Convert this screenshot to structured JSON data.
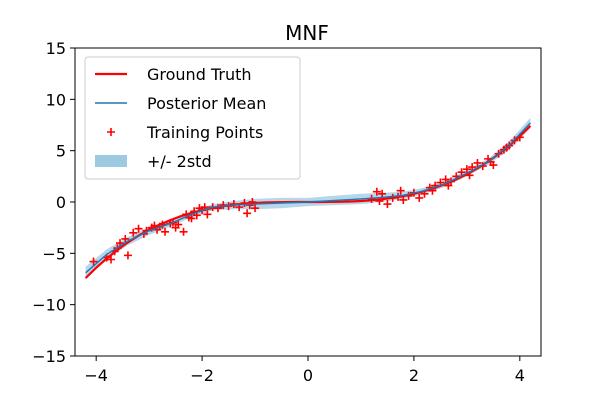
{
  "chart_data": {
    "type": "line",
    "title": "MNF",
    "xlabel": "",
    "ylabel": "",
    "xlim": [
      -4.4,
      4.4
    ],
    "ylim": [
      -15,
      15
    ],
    "xticks": [
      -4,
      -2,
      0,
      2,
      4
    ],
    "xtick_labels": [
      "−4",
      "−2",
      "0",
      "2",
      "4"
    ],
    "yticks": [
      -15,
      -10,
      -5,
      0,
      5,
      10,
      15
    ],
    "ytick_labels": [
      "−15",
      "−10",
      "−5",
      "0",
      "5",
      "10",
      "15"
    ],
    "grid": false,
    "legend_position": "top-left",
    "series": [
      {
        "name": "Ground Truth",
        "kind": "line",
        "color": "#ff0000",
        "x": [
          -4.2,
          -4.0,
          -3.8,
          -3.6,
          -3.4,
          -3.2,
          -3.0,
          -2.8,
          -2.6,
          -2.4,
          -2.2,
          -2.0,
          -1.8,
          -1.6,
          -1.4,
          -1.2,
          -1.0,
          -0.8,
          -0.6,
          -0.4,
          -0.2,
          0.0,
          0.2,
          0.4,
          0.6,
          0.8,
          1.0,
          1.2,
          1.4,
          1.6,
          1.8,
          2.0,
          2.2,
          2.4,
          2.6,
          2.8,
          3.0,
          3.2,
          3.4,
          3.6,
          3.8,
          4.0,
          4.2
        ],
        "y": [
          -7.41,
          -6.4,
          -5.49,
          -4.67,
          -3.93,
          -3.28,
          -2.7,
          -2.2,
          -1.76,
          -1.38,
          -1.06,
          -0.8,
          -0.58,
          -0.41,
          -0.27,
          -0.17,
          -0.1,
          -0.05,
          -0.02,
          -0.01,
          0.0,
          0.0,
          0.0,
          0.01,
          0.02,
          0.05,
          0.1,
          0.17,
          0.27,
          0.41,
          0.58,
          0.8,
          1.06,
          1.38,
          1.76,
          2.2,
          2.7,
          3.28,
          3.93,
          4.67,
          5.49,
          6.4,
          7.41
        ]
      },
      {
        "name": "Posterior Mean",
        "kind": "line",
        "color": "#1f77b4",
        "x": [
          -4.2,
          -3.8,
          -3.4,
          -3.0,
          -2.6,
          -2.2,
          -1.8,
          -1.4,
          -1.0,
          -0.5,
          0.0,
          0.5,
          1.0,
          1.4,
          1.8,
          2.2,
          2.6,
          3.0,
          3.4,
          3.8,
          4.2
        ],
        "y": [
          -6.9,
          -5.1,
          -3.8,
          -2.8,
          -2.1,
          -1.2,
          -0.5,
          -0.3,
          -0.2,
          -0.1,
          0.0,
          0.15,
          0.3,
          0.45,
          0.65,
          1.1,
          1.8,
          2.8,
          3.9,
          5.5,
          7.7
        ]
      },
      {
        "name": "+/- 2std",
        "kind": "band",
        "color": "#1f77b4",
        "x": [
          -4.2,
          -3.8,
          -3.4,
          -3.0,
          -2.6,
          -2.2,
          -1.8,
          -1.4,
          -1.0,
          -0.5,
          0.0,
          0.5,
          1.0,
          1.4,
          1.8,
          2.2,
          2.6,
          3.0,
          3.4,
          3.8,
          4.2
        ],
        "upper": [
          -6.3,
          -4.6,
          -3.4,
          -2.4,
          -1.8,
          -0.9,
          -0.2,
          0.1,
          0.3,
          0.4,
          0.4,
          0.6,
          0.8,
          0.9,
          1.0,
          1.4,
          2.1,
          3.1,
          4.2,
          5.9,
          8.2
        ],
        "lower": [
          -7.5,
          -5.6,
          -4.2,
          -3.2,
          -2.4,
          -1.5,
          -0.8,
          -0.7,
          -0.7,
          -0.6,
          -0.4,
          -0.3,
          -0.2,
          0.0,
          0.3,
          0.8,
          1.5,
          2.5,
          3.6,
          5.1,
          7.2
        ]
      },
      {
        "name": "Training Points",
        "kind": "scatter",
        "color": "#ff0000",
        "x": [
          -4.05,
          -3.8,
          -3.72,
          -3.65,
          -3.6,
          -3.55,
          -3.45,
          -3.4,
          -3.3,
          -3.2,
          -3.1,
          -3.05,
          -2.95,
          -2.9,
          -2.85,
          -2.8,
          -2.75,
          -2.7,
          -2.6,
          -2.55,
          -2.5,
          -2.45,
          -2.35,
          -2.3,
          -2.25,
          -2.2,
          -2.15,
          -2.1,
          -2.05,
          -2.0,
          -1.95,
          -1.9,
          -1.8,
          -1.7,
          -1.6,
          -1.5,
          -1.4,
          -1.3,
          -1.2,
          -1.15,
          -1.1,
          -1.05,
          -1.0,
          1.2,
          1.3,
          1.35,
          1.4,
          1.5,
          1.6,
          1.7,
          1.75,
          1.8,
          1.9,
          2.0,
          2.1,
          2.2,
          2.3,
          2.35,
          2.4,
          2.5,
          2.6,
          2.65,
          2.7,
          2.8,
          2.9,
          3.0,
          3.05,
          3.1,
          3.2,
          3.3,
          3.4,
          3.45,
          3.5,
          3.6,
          3.7,
          3.75,
          3.8,
          3.9,
          4.0
        ],
        "y": [
          -5.8,
          -5.4,
          -5.6,
          -4.8,
          -4.5,
          -4.0,
          -3.6,
          -5.2,
          -3.0,
          -2.6,
          -3.1,
          -2.8,
          -2.5,
          -2.3,
          -2.7,
          -2.4,
          -2.2,
          -2.9,
          -2.1,
          -2.0,
          -2.5,
          -2.2,
          -2.9,
          -1.2,
          -1.5,
          -1.6,
          -0.9,
          -1.3,
          -0.6,
          -0.8,
          -0.5,
          -1.2,
          -0.5,
          -0.6,
          -0.3,
          -0.4,
          -0.2,
          -0.5,
          -0.1,
          -1.1,
          -0.3,
          0.0,
          -0.6,
          0.3,
          1.0,
          0.1,
          0.8,
          -0.2,
          0.4,
          0.5,
          1.1,
          0.2,
          0.6,
          0.9,
          0.4,
          0.8,
          1.4,
          1.1,
          1.6,
          1.9,
          2.2,
          1.6,
          2.0,
          2.5,
          2.9,
          3.2,
          2.6,
          3.4,
          3.8,
          3.5,
          4.2,
          3.9,
          3.6,
          4.7,
          5.1,
          5.3,
          5.5,
          6.0,
          6.3
        ]
      }
    ],
    "legend": [
      {
        "label": "Ground Truth",
        "marker": "line",
        "color": "#ff0000"
      },
      {
        "label": "Posterior Mean",
        "marker": "line",
        "color": "#1f77b4"
      },
      {
        "label": "Training Points",
        "marker": "plus",
        "color": "#ff0000"
      },
      {
        "label": "+/- 2std",
        "marker": "patch",
        "color": "#9ecae1"
      }
    ]
  }
}
